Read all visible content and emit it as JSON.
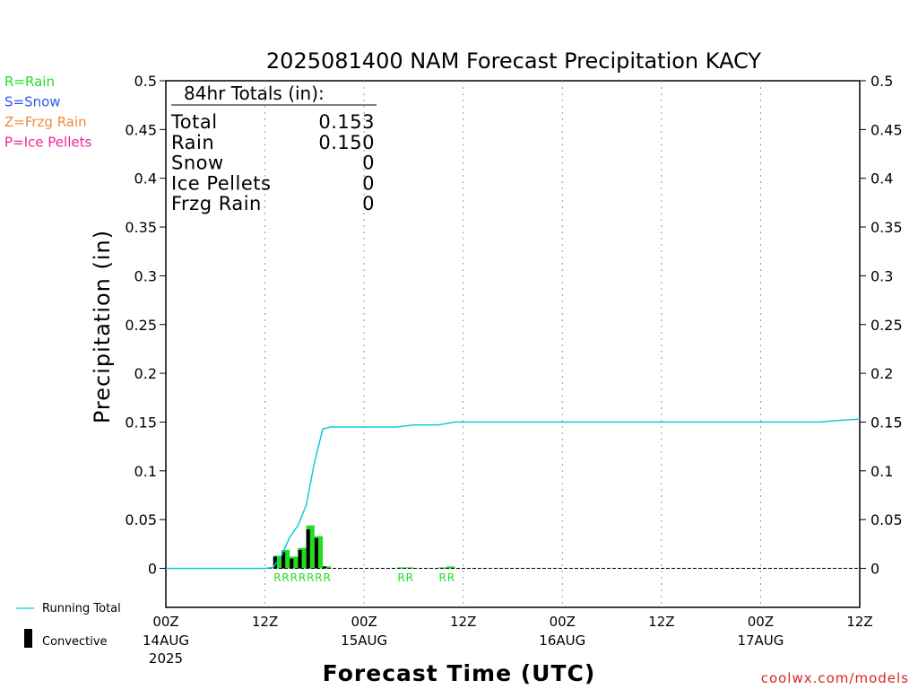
{
  "chart_data": {
    "type": "bar",
    "title": "2025081400 NAM Forecast Precipitation KACY",
    "ylabel": "Precipitation (in)",
    "xlabel": "Forecast Time (UTC)",
    "ylim": [
      -0.04,
      0.5
    ],
    "xlim_hours": [
      0,
      84
    ],
    "y_ticks": [
      "0.5",
      "0.45",
      "0.4",
      "0.35",
      "0.3",
      "0.25",
      "0.2",
      "0.15",
      "0.1",
      "0.05",
      "0"
    ],
    "y_tick_values": [
      0.5,
      0.45,
      0.4,
      0.35,
      0.3,
      0.25,
      0.2,
      0.15,
      0.1,
      0.05,
      0
    ],
    "x_ticks": [
      {
        "hour": 0,
        "time": "00Z",
        "date": "14AUG",
        "year": "2025"
      },
      {
        "hour": 12,
        "time": "12Z",
        "date": "",
        "year": ""
      },
      {
        "hour": 24,
        "time": "00Z",
        "date": "15AUG",
        "year": ""
      },
      {
        "hour": 36,
        "time": "12Z",
        "date": "",
        "year": ""
      },
      {
        "hour": 48,
        "time": "00Z",
        "date": "16AUG",
        "year": ""
      },
      {
        "hour": 60,
        "time": "12Z",
        "date": "",
        "year": ""
      },
      {
        "hour": 72,
        "time": "00Z",
        "date": "17AUG",
        "year": ""
      },
      {
        "hour": 84,
        "time": "12Z",
        "date": "",
        "year": ""
      }
    ],
    "grid_x": true,
    "bars": [
      {
        "hour": 14,
        "precip": 0.013,
        "convective": 0.012,
        "ptype": "R"
      },
      {
        "hour": 15,
        "precip": 0.019,
        "convective": 0.017,
        "ptype": "R"
      },
      {
        "hour": 16,
        "precip": 0.012,
        "convective": 0.01,
        "ptype": "R"
      },
      {
        "hour": 17,
        "precip": 0.021,
        "convective": 0.019,
        "ptype": "R"
      },
      {
        "hour": 18,
        "precip": 0.044,
        "convective": 0.04,
        "ptype": "R"
      },
      {
        "hour": 19,
        "precip": 0.033,
        "convective": 0.031,
        "ptype": "R"
      },
      {
        "hour": 20,
        "precip": 0.002,
        "convective": 0.002,
        "ptype": "R"
      },
      {
        "hour": 29,
        "precip": 0.001,
        "convective": 0,
        "ptype": "R"
      },
      {
        "hour": 30,
        "precip": 0.001,
        "convective": 0,
        "ptype": "R"
      },
      {
        "hour": 34,
        "precip": 0.001,
        "convective": 0,
        "ptype": "R"
      },
      {
        "hour": 35,
        "precip": 0.002,
        "convective": 0,
        "ptype": "R"
      }
    ],
    "running_total": {
      "name": "Running Total",
      "points": [
        [
          0,
          0
        ],
        [
          12,
          0
        ],
        [
          13,
          0.001
        ],
        [
          14,
          0.013
        ],
        [
          15,
          0.032
        ],
        [
          16,
          0.044
        ],
        [
          17,
          0.065
        ],
        [
          18,
          0.109
        ],
        [
          19,
          0.143
        ],
        [
          20,
          0.145
        ],
        [
          21,
          0.145
        ],
        [
          24,
          0.145
        ],
        [
          28,
          0.145
        ],
        [
          30,
          0.147
        ],
        [
          33,
          0.147
        ],
        [
          35,
          0.15
        ],
        [
          36,
          0.15
        ],
        [
          40,
          0.15
        ],
        [
          50,
          0.15
        ],
        [
          60,
          0.15
        ],
        [
          70,
          0.15
        ],
        [
          79,
          0.15
        ],
        [
          82,
          0.152
        ],
        [
          84,
          0.153
        ]
      ]
    }
  },
  "totals_box": {
    "header": "84hr Totals (in):",
    "rows": [
      {
        "label": "Total",
        "value": "0.153"
      },
      {
        "label": "Rain",
        "value": "0.150"
      },
      {
        "label": "Snow",
        "value": "0"
      },
      {
        "label": "Ice Pellets",
        "value": "0"
      },
      {
        "label": "Frzg Rain",
        "value": "0"
      }
    ]
  },
  "type_legend": [
    {
      "text": "R=Rain",
      "color": "#22dd22"
    },
    {
      "text": "S=Snow",
      "color": "#3355ee"
    },
    {
      "text": "Z=Frzg Rain",
      "color": "#f08a3c"
    },
    {
      "text": "P=Ice Pellets",
      "color": "#ee2299"
    }
  ],
  "series_legend": {
    "running_total": "Running Total",
    "convective": "Convective"
  },
  "credit": "coolwx.com/models",
  "colors": {
    "precip_bar": "#22dd22",
    "convective_bar": "#000000",
    "running_total": "#00c8d2",
    "ptype_label": "#22dd22",
    "credit": "#dd2222"
  }
}
